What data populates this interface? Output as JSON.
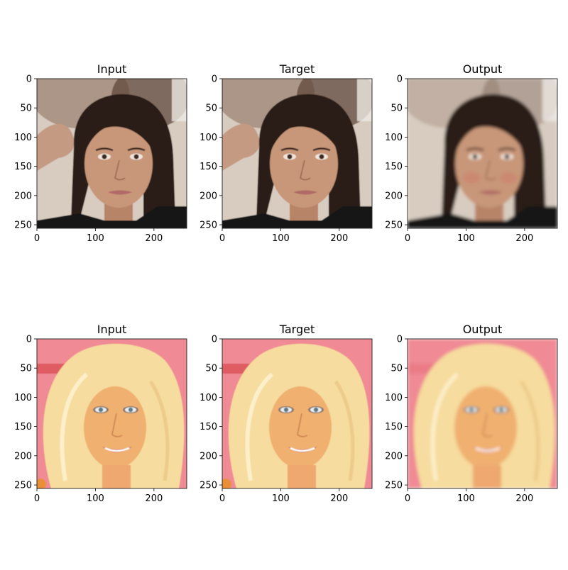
{
  "figure": {
    "panels": [
      {
        "title": "Input",
        "row": 0,
        "col": 0,
        "subject": "dark-haired woman, hand raised behind head, black jacket",
        "blur": 0.6,
        "look": "photo"
      },
      {
        "title": "Target",
        "row": 0,
        "col": 1,
        "subject": "dark-haired woman, hand raised behind head, black jacket",
        "blur": 0.6,
        "look": "photo"
      },
      {
        "title": "Output",
        "row": 0,
        "col": 2,
        "subject": "dark-haired woman, smoother reconstructed face",
        "blur": 2.2,
        "look": "reconstruction"
      },
      {
        "title": "Input",
        "row": 1,
        "col": 0,
        "subject": "platinum-blonde woman smiling, pink background",
        "blur": 0.6,
        "look": "photo"
      },
      {
        "title": "Target",
        "row": 1,
        "col": 1,
        "subject": "platinum-blonde woman smiling, pink background",
        "blur": 0.6,
        "look": "photo"
      },
      {
        "title": "Output",
        "row": 1,
        "col": 2,
        "subject": "platinum-blonde woman, smoother reconstructed face",
        "blur": 2.2,
        "look": "reconstruction"
      }
    ],
    "axes": {
      "xlim": [
        0,
        256
      ],
      "ylim": [
        256,
        0
      ],
      "x_ticks": [
        0,
        100,
        200
      ],
      "y_ticks": [
        0,
        50,
        100,
        150,
        200,
        250
      ]
    },
    "colors": {
      "frame": "#000000",
      "text": "#000000",
      "row0_background": "#d8ccc0",
      "row0_hair": "#2a1e18",
      "row0_skin": "#c89678",
      "row1_background": "#f08a94",
      "row1_hair": "#f6dc9e",
      "row1_skin": "#f0b070"
    }
  }
}
